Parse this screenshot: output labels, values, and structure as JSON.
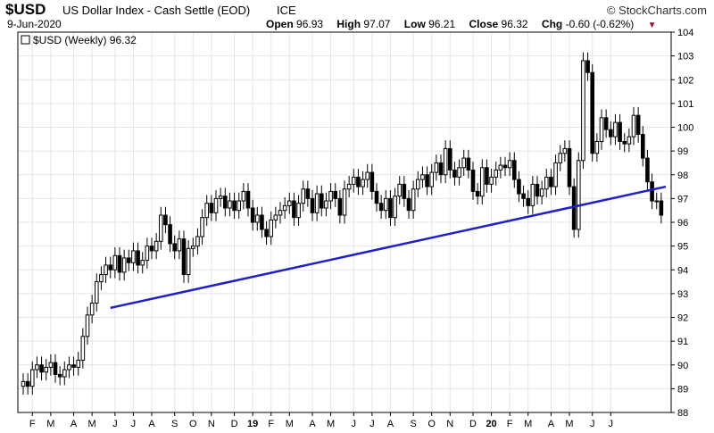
{
  "header": {
    "symbol": "$USD",
    "description": "US Dollar Index - Cash Settle (EOD)",
    "exchange": "ICE",
    "brand": "© StockCharts.com",
    "date": "9-Jun-2020",
    "open_label": "Open",
    "open": "96.93",
    "high_label": "High",
    "high": "97.07",
    "low_label": "Low",
    "low": "96.21",
    "close_label": "Close",
    "close": "96.32",
    "chg_label": "Chg",
    "chg": "-0.60 (-0.62%)"
  },
  "legend": {
    "text": "$USD (Weekly) 96.32"
  },
  "colors": {
    "trendline": "#2020c8",
    "candle": "#000000",
    "grid": "#e4e4e4"
  },
  "chart_data": {
    "type": "candlestick",
    "interval": "weekly",
    "ylim": [
      88,
      104
    ],
    "yticks": [
      88,
      89,
      90,
      91,
      92,
      93,
      94,
      95,
      96,
      97,
      98,
      99,
      100,
      101,
      102,
      103,
      104
    ],
    "x_start": 0,
    "x_end": 140,
    "xticks": [
      {
        "label": "F",
        "x": 2
      },
      {
        "label": "M",
        "x": 6
      },
      {
        "label": "A",
        "x": 11
      },
      {
        "label": "M",
        "x": 15
      },
      {
        "label": "J",
        "x": 20
      },
      {
        "label": "J",
        "x": 24
      },
      {
        "label": "A",
        "x": 28
      },
      {
        "label": "S",
        "x": 33
      },
      {
        "label": "O",
        "x": 37
      },
      {
        "label": "N",
        "x": 41
      },
      {
        "label": "D",
        "x": 46
      },
      {
        "label": "19",
        "x": 50,
        "bold": true
      },
      {
        "label": "F",
        "x": 54
      },
      {
        "label": "M",
        "x": 58
      },
      {
        "label": "A",
        "x": 63
      },
      {
        "label": "M",
        "x": 67
      },
      {
        "label": "J",
        "x": 72
      },
      {
        "label": "J",
        "x": 76
      },
      {
        "label": "A",
        "x": 80
      },
      {
        "label": "S",
        "x": 85
      },
      {
        "label": "O",
        "x": 89
      },
      {
        "label": "N",
        "x": 93
      },
      {
        "label": "D",
        "x": 98
      },
      {
        "label": "20",
        "x": 102,
        "bold": true
      },
      {
        "label": "F",
        "x": 106
      },
      {
        "label": "M",
        "x": 110
      },
      {
        "label": "A",
        "x": 115
      },
      {
        "label": "M",
        "x": 119
      },
      {
        "label": "J",
        "x": 124
      },
      {
        "label": "J",
        "x": 128
      }
    ],
    "closes": [
      89.3,
      89.1,
      89.8,
      90.0,
      89.7,
      89.9,
      90.1,
      89.6,
      89.5,
      89.8,
      90.0,
      89.9,
      90.2,
      91.2,
      92.1,
      92.6,
      93.5,
      93.8,
      94.2,
      94.0,
      94.6,
      93.9,
      94.5,
      94.3,
      94.8,
      94.2,
      94.4,
      95.0,
      94.8,
      95.2,
      96.3,
      95.9,
      95.1,
      94.8,
      95.3,
      93.8,
      94.9,
      95.0,
      95.4,
      96.2,
      96.8,
      96.4,
      97.0,
      97.1,
      96.6,
      96.9,
      96.5,
      96.9,
      97.3,
      96.6,
      96.0,
      96.3,
      95.7,
      95.4,
      96.1,
      96.3,
      96.5,
      96.7,
      96.9,
      96.2,
      96.8,
      97.4,
      97.0,
      96.4,
      97.2,
      96.6,
      96.9,
      97.3,
      97.0,
      96.3,
      97.4,
      97.6,
      97.9,
      97.5,
      97.8,
      98.1,
      97.3,
      96.8,
      96.5,
      97.0,
      96.2,
      97.1,
      97.6,
      97.0,
      96.5,
      97.4,
      97.8,
      98.0,
      97.5,
      98.1,
      98.5,
      98.0,
      99.1,
      98.2,
      97.9,
      98.3,
      98.7,
      98.2,
      97.3,
      97.1,
      98.3,
      97.6,
      97.9,
      98.2,
      98.4,
      98.3,
      98.6,
      97.8,
      97.2,
      97.0,
      96.7,
      97.6,
      97.1,
      97.4,
      97.9,
      97.5,
      98.5,
      98.9,
      99.1,
      97.5,
      95.7,
      98.6,
      102.8,
      102.3,
      98.9,
      99.4,
      100.4,
      99.9,
      99.6,
      100.2,
      99.4,
      99.3,
      99.6,
      100.5,
      99.7,
      98.7,
      97.7,
      96.9,
      96.9,
      96.3
    ],
    "trendline": [
      {
        "x": 19,
        "y": 92.4
      },
      {
        "x": 140,
        "y": 97.5
      }
    ]
  }
}
